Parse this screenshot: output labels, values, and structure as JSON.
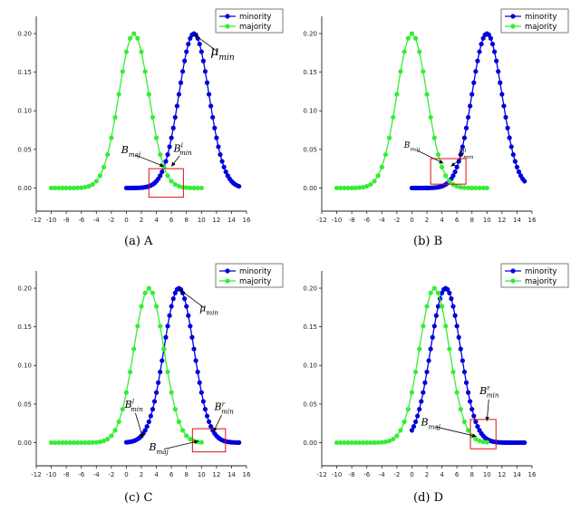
{
  "chart_data": [
    {
      "type": "line",
      "panel_id": "A",
      "caption": "(a)  A",
      "xlim": [
        -12,
        16
      ],
      "ylim": [
        -0.03,
        0.22
      ],
      "x_ticks": [
        "-12",
        "-10",
        "-8",
        "-6",
        "-4",
        "-2",
        "0",
        "2",
        "4",
        "6",
        "8",
        "10",
        "12",
        "14",
        "16"
      ],
      "y_ticks": [
        "0.00",
        "0.05",
        "0.10",
        "0.15",
        "0.20"
      ],
      "legend": {
        "position": "top-right",
        "entries": [
          "minority",
          "majority"
        ]
      },
      "series": [
        {
          "name": "minority",
          "color": "#0000dd",
          "mean": 9,
          "std": 2,
          "x_start": 0,
          "x_end": 15,
          "step": 0.25
        },
        {
          "name": "majority",
          "color": "#33ee33",
          "mean": 1,
          "std": 2,
          "x_start": -10,
          "x_end": 10,
          "step": 0.5
        }
      ],
      "boxes": [
        {
          "x": [
            3,
            7.6
          ],
          "y": [
            -0.012,
            0.025
          ]
        }
      ],
      "annotations": [
        {
          "label": "B",
          "sub": "maj",
          "sup": "",
          "text_at": [
            0.6,
            0.045
          ],
          "arrow_to": [
            5.0,
            0.028
          ],
          "size": "medium"
        },
        {
          "label": "B",
          "sub": "min",
          "sup": "l",
          "text_at": [
            7.5,
            0.047
          ],
          "arrow_to": [
            6.0,
            0.028
          ],
          "size": "medium"
        },
        {
          "label": "μ",
          "sub": "min",
          "sup": "",
          "text_at": [
            12.8,
            0.172
          ],
          "arrow_to": [
            9.0,
            0.199
          ],
          "size": "large"
        }
      ]
    },
    {
      "type": "line",
      "panel_id": "B",
      "caption": "(b)  B",
      "xlim": [
        -12,
        16
      ],
      "ylim": [
        -0.03,
        0.22
      ],
      "x_ticks": [
        "-12",
        "-10",
        "-8",
        "-6",
        "-4",
        "-2",
        "0",
        "2",
        "4",
        "6",
        "8",
        "10",
        "12",
        "14",
        "16"
      ],
      "y_ticks": [
        "0.00",
        "0.05",
        "0.10",
        "0.15",
        "0.20"
      ],
      "legend": {
        "position": "top-right",
        "entries": [
          "minority",
          "majority"
        ]
      },
      "series": [
        {
          "name": "minority",
          "color": "#0000dd",
          "mean": 10,
          "std": 2,
          "x_start": 0,
          "x_end": 15,
          "step": 0.25
        },
        {
          "name": "majority",
          "color": "#33ee33",
          "mean": 0,
          "std": 2,
          "x_start": -10,
          "x_end": 10,
          "step": 0.5
        }
      ],
      "boxes": [
        {
          "x": [
            2.5,
            7.2
          ],
          "y": [
            0.005,
            0.038
          ]
        }
      ],
      "annotations": [
        {
          "label": "B",
          "sub": "maj",
          "sup": "",
          "text_at": [
            0.0,
            0.052
          ],
          "arrow_to": [
            4.2,
            0.032
          ],
          "size": "small"
        },
        {
          "label": "B",
          "sub": "min",
          "sup": "l",
          "text_at": [
            7.2,
            0.042
          ],
          "arrow_to": [
            5.2,
            0.028
          ],
          "size": "small"
        }
      ]
    },
    {
      "type": "line",
      "panel_id": "C",
      "caption": "(c)  C",
      "xlim": [
        -12,
        16
      ],
      "ylim": [
        -0.03,
        0.22
      ],
      "x_ticks": [
        "-12",
        "-10",
        "-8",
        "-6",
        "-4",
        "-2",
        "0",
        "2",
        "4",
        "6",
        "8",
        "10",
        "12",
        "14",
        "16"
      ],
      "y_ticks": [
        "0.00",
        "0.05",
        "0.10",
        "0.15",
        "0.20"
      ],
      "legend": {
        "position": "top-right",
        "entries": [
          "minority",
          "majority"
        ]
      },
      "series": [
        {
          "name": "minority",
          "color": "#0000dd",
          "mean": 7,
          "std": 2,
          "x_start": 0,
          "x_end": 15,
          "step": 0.25
        },
        {
          "name": "majority",
          "color": "#33ee33",
          "mean": 3,
          "std": 2,
          "x_start": -10,
          "x_end": 10,
          "step": 0.5
        }
      ],
      "boxes": [
        {
          "x": [
            8.8,
            13.2
          ],
          "y": [
            -0.012,
            0.018
          ]
        }
      ],
      "annotations": [
        {
          "label": "B",
          "sub": "min",
          "sup": "l",
          "text_at": [
            1.0,
            0.045
          ],
          "arrow_to": [
            2.2,
            0.006
          ],
          "size": "medium"
        },
        {
          "label": "B",
          "sub": "maj",
          "sup": "",
          "text_at": [
            4.3,
            -0.01
          ],
          "arrow_to": [
            9.6,
            0.002
          ],
          "size": "medium"
        },
        {
          "label": "B",
          "sub": "min",
          "sup": "r",
          "text_at": [
            13.0,
            0.042
          ],
          "arrow_to": [
            11.6,
            0.014
          ],
          "size": "medium"
        },
        {
          "label": "μ",
          "sub": "min",
          "sup": "",
          "text_at": [
            11.0,
            0.17
          ],
          "arrow_to": [
            7.0,
            0.199
          ],
          "size": "medium"
        }
      ]
    },
    {
      "type": "line",
      "panel_id": "D",
      "caption": "(d)  D",
      "xlim": [
        -12,
        16
      ],
      "ylim": [
        -0.03,
        0.22
      ],
      "x_ticks": [
        "-12",
        "-10",
        "-8",
        "-6",
        "-4",
        "-2",
        "0",
        "2",
        "4",
        "6",
        "8",
        "10",
        "12",
        "14",
        "16"
      ],
      "y_ticks": [
        "0.00",
        "0.05",
        "0.10",
        "0.15",
        "0.20"
      ],
      "legend": {
        "position": "top-right",
        "entries": [
          "minority",
          "majority"
        ]
      },
      "series": [
        {
          "name": "minority",
          "color": "#0000dd",
          "mean": 4.5,
          "std": 2,
          "x_start": 0,
          "x_end": 15,
          "step": 0.25
        },
        {
          "name": "majority",
          "color": "#33ee33",
          "mean": 3,
          "std": 2,
          "x_start": -10,
          "x_end": 10,
          "step": 0.5
        }
      ],
      "boxes": [
        {
          "x": [
            7.8,
            11.2
          ],
          "y": [
            -0.008,
            0.03
          ]
        }
      ],
      "annotations": [
        {
          "label": "B",
          "sub": "min",
          "sup": "r",
          "text_at": [
            10.3,
            0.063
          ],
          "arrow_to": [
            10.0,
            0.028
          ],
          "size": "medium"
        },
        {
          "label": "B",
          "sub": "maj",
          "sup": "",
          "text_at": [
            2.5,
            0.022
          ],
          "arrow_to": [
            8.6,
            0.008
          ],
          "size": "medium"
        }
      ]
    }
  ]
}
